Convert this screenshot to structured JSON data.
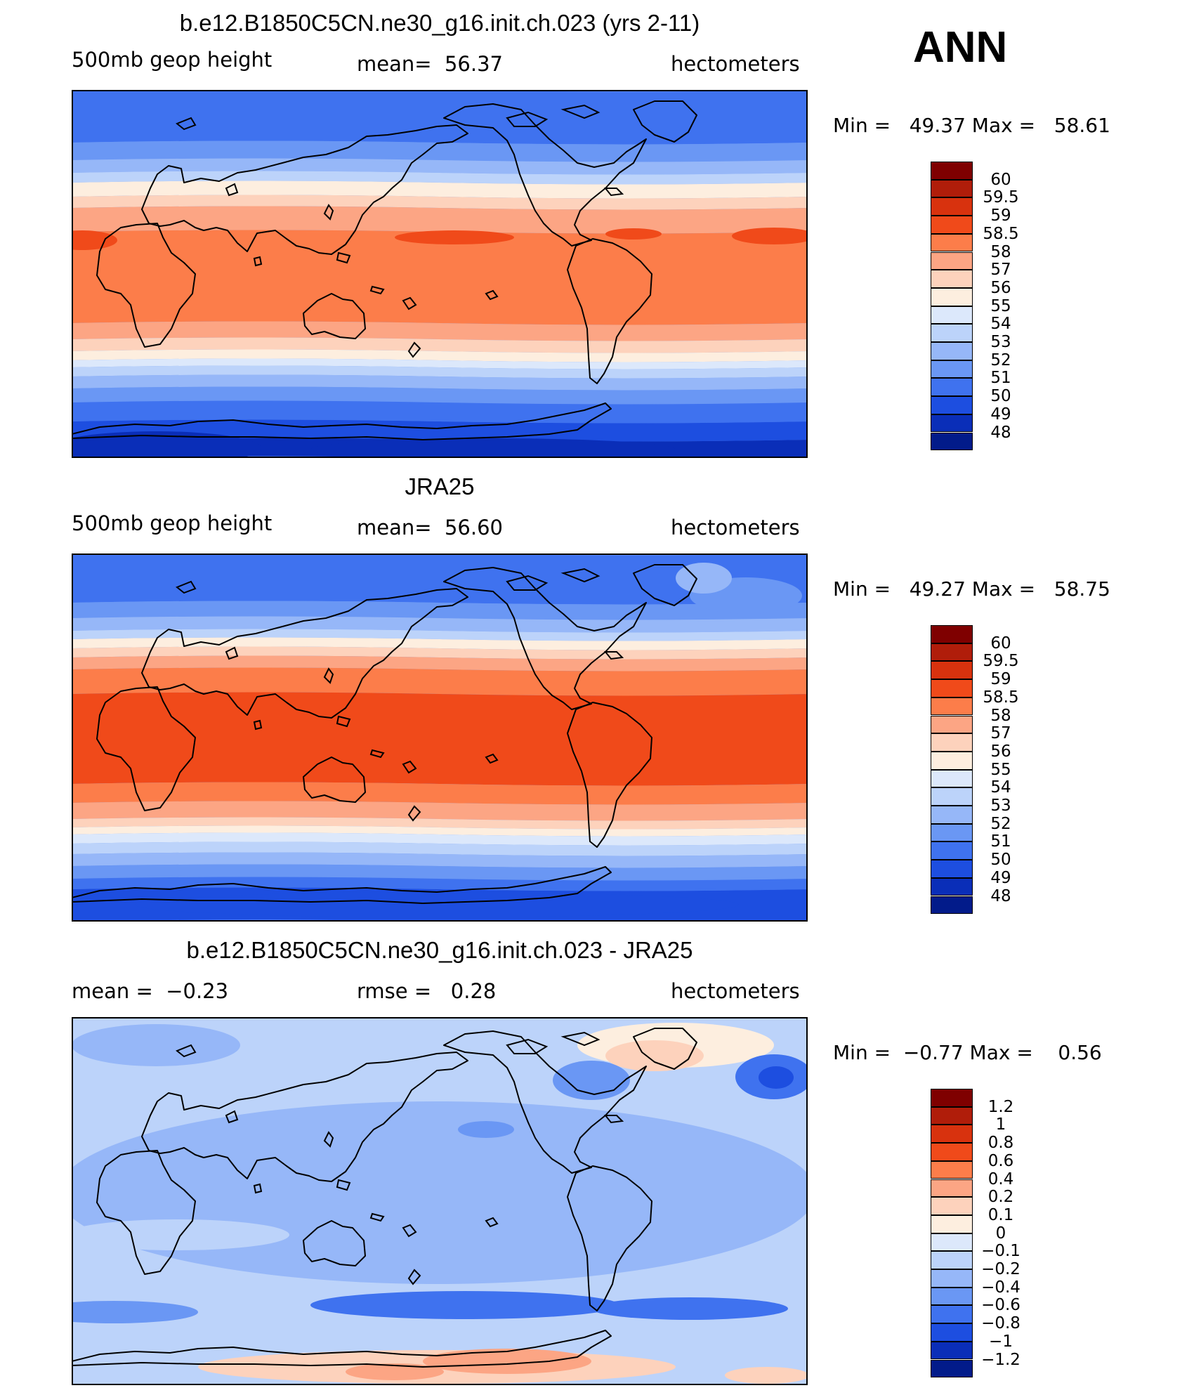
{
  "season": "ANN",
  "panels": [
    {
      "title": "b.e12.B1850C5CN.ne30_g16.init.ch.023 (yrs 2-11)",
      "left_label": "500mb geop height",
      "center_label": "mean=  56.37",
      "right_label": "hectometers",
      "stats": "Min =   49.37 Max =   58.61",
      "colorbar_labels": [
        "60",
        "59.5",
        "59",
        "58.5",
        "58",
        "57",
        "56",
        "55",
        "54",
        "53",
        "52",
        "51",
        "50",
        "49",
        "48"
      ],
      "field": "model"
    },
    {
      "title": "JRA25",
      "left_label": "500mb geop height",
      "center_label": "mean=  56.60",
      "right_label": "hectometers",
      "stats": "Min =   49.27 Max =   58.75",
      "colorbar_labels": [
        "60",
        "59.5",
        "59",
        "58.5",
        "58",
        "57",
        "56",
        "55",
        "54",
        "53",
        "52",
        "51",
        "50",
        "49",
        "48"
      ],
      "field": "obs"
    },
    {
      "title": "b.e12.B1850C5CN.ne30_g16.init.ch.023 - JRA25",
      "left_label": "mean =  −0.23",
      "center_label": "rmse =   0.28",
      "right_label": "hectometers",
      "stats": "Min =  −0.77 Max =    0.56",
      "colorbar_labels": [
        "1.2",
        "1",
        "0.8",
        "0.6",
        "0.4",
        "0.2",
        "0.1",
        "0",
        "−0.1",
        "−0.2",
        "−0.4",
        "−0.6",
        "−0.8",
        "−1",
        "−1.2"
      ],
      "field": "diff"
    }
  ],
  "colorbar_colors": [
    "#7f0000",
    "#b01d0a",
    "#d8320e",
    "#f04a1a",
    "#fc7d4a",
    "#fca584",
    "#fdd2bc",
    "#fdeedf",
    "#dce8fb",
    "#bcd3fa",
    "#96b7f8",
    "#6a97f4",
    "#3f72ef",
    "#1d4ee0",
    "#0a2eb8",
    "#021b8a"
  ]
}
